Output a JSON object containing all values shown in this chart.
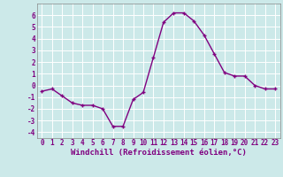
{
  "x": [
    0,
    1,
    2,
    3,
    4,
    5,
    6,
    7,
    8,
    9,
    10,
    11,
    12,
    13,
    14,
    15,
    16,
    17,
    18,
    19,
    20,
    21,
    22,
    23
  ],
  "y": [
    -0.5,
    -0.3,
    -0.9,
    -1.5,
    -1.7,
    -1.7,
    -2.0,
    -3.5,
    -3.5,
    -1.2,
    -0.6,
    2.4,
    5.4,
    6.2,
    6.2,
    5.5,
    4.3,
    2.7,
    1.1,
    0.8,
    0.8,
    0.0,
    -0.3,
    -0.3
  ],
  "line_color": "#800080",
  "marker": "+",
  "marker_size": 3.5,
  "marker_linewidth": 1.0,
  "bg_color": "#cce9e9",
  "grid_color": "#b0d0d0",
  "xlabel": "Windchill (Refroidissement éolien,°C)",
  "xlim": [
    -0.5,
    23.5
  ],
  "ylim": [
    -4.5,
    7.0
  ],
  "yticks": [
    -4,
    -3,
    -2,
    -1,
    0,
    1,
    2,
    3,
    4,
    5,
    6
  ],
  "xticks": [
    0,
    1,
    2,
    3,
    4,
    5,
    6,
    7,
    8,
    9,
    10,
    11,
    12,
    13,
    14,
    15,
    16,
    17,
    18,
    19,
    20,
    21,
    22,
    23
  ],
  "tick_fontsize": 5.5,
  "label_fontsize": 6.5,
  "line_width": 1.0
}
